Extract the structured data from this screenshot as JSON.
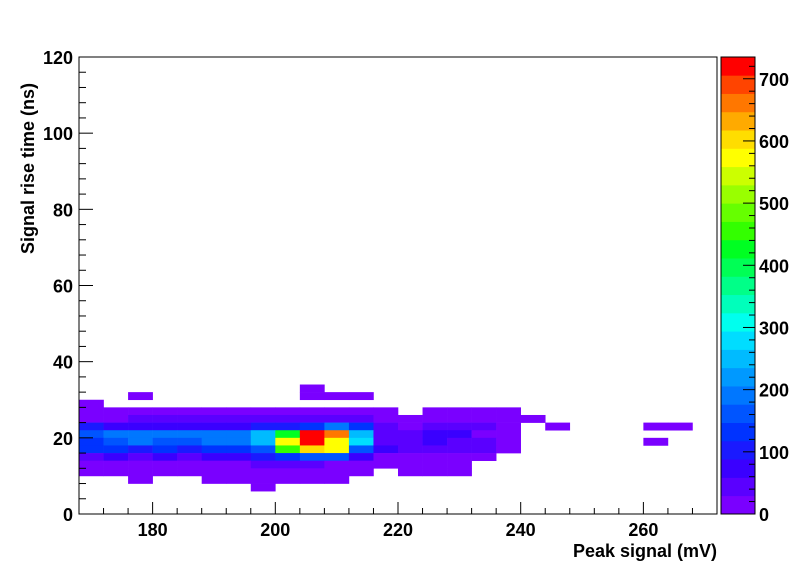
{
  "chart_data": {
    "type": "heatmap",
    "title": "",
    "xlabel": "Peak signal (mV)",
    "ylabel": "Signal rise time (ns)",
    "xlim": [
      168,
      272
    ],
    "ylim": [
      0,
      120
    ],
    "bin_width_x": 4,
    "bin_height_y": 2,
    "x_ticks": [
      180,
      200,
      220,
      240,
      260
    ],
    "y_ticks": [
      0,
      20,
      40,
      60,
      80,
      100,
      120
    ],
    "colorbar": {
      "range": [
        0,
        735
      ],
      "ticks": [
        0,
        100,
        200,
        300,
        400,
        500,
        600,
        700
      ],
      "palette": [
        "#7a00ff",
        "#5a00ff",
        "#3a00ff",
        "#1a1aff",
        "#0033ff",
        "#0055ff",
        "#0077ff",
        "#0099ff",
        "#00bbff",
        "#00ddff",
        "#00ffee",
        "#00ffbb",
        "#00ff88",
        "#00ff55",
        "#00ff22",
        "#33ff00",
        "#66ff00",
        "#99ff00",
        "#ccff00",
        "#ffff00",
        "#ffdd00",
        "#ffaa00",
        "#ff7700",
        "#ff4400",
        "#ff0000"
      ]
    },
    "cells": [
      {
        "x": 168,
        "y": 28,
        "v": 10
      },
      {
        "x": 176,
        "y": 30,
        "v": 10
      },
      {
        "x": 204,
        "y": 32,
        "v": 10
      },
      {
        "x": 204,
        "y": 30,
        "v": 10
      },
      {
        "x": 208,
        "y": 30,
        "v": 10
      },
      {
        "x": 212,
        "y": 30,
        "v": 10
      },
      {
        "x": 168,
        "y": 26,
        "v": 15
      },
      {
        "x": 172,
        "y": 26,
        "v": 15
      },
      {
        "x": 176,
        "y": 26,
        "v": 15
      },
      {
        "x": 180,
        "y": 26,
        "v": 15
      },
      {
        "x": 184,
        "y": 26,
        "v": 15
      },
      {
        "x": 188,
        "y": 26,
        "v": 15
      },
      {
        "x": 192,
        "y": 26,
        "v": 15
      },
      {
        "x": 196,
        "y": 26,
        "v": 15
      },
      {
        "x": 200,
        "y": 26,
        "v": 15
      },
      {
        "x": 204,
        "y": 26,
        "v": 15
      },
      {
        "x": 208,
        "y": 26,
        "v": 15
      },
      {
        "x": 212,
        "y": 26,
        "v": 15
      },
      {
        "x": 216,
        "y": 26,
        "v": 10
      },
      {
        "x": 224,
        "y": 26,
        "v": 10
      },
      {
        "x": 228,
        "y": 26,
        "v": 10
      },
      {
        "x": 232,
        "y": 26,
        "v": 10
      },
      {
        "x": 236,
        "y": 26,
        "v": 10
      },
      {
        "x": 168,
        "y": 24,
        "v": 20
      },
      {
        "x": 172,
        "y": 24,
        "v": 20
      },
      {
        "x": 176,
        "y": 24,
        "v": 30
      },
      {
        "x": 180,
        "y": 24,
        "v": 30
      },
      {
        "x": 184,
        "y": 24,
        "v": 30
      },
      {
        "x": 188,
        "y": 24,
        "v": 30
      },
      {
        "x": 192,
        "y": 24,
        "v": 30
      },
      {
        "x": 196,
        "y": 24,
        "v": 30
      },
      {
        "x": 200,
        "y": 24,
        "v": 30
      },
      {
        "x": 204,
        "y": 24,
        "v": 30
      },
      {
        "x": 208,
        "y": 24,
        "v": 50
      },
      {
        "x": 212,
        "y": 24,
        "v": 30
      },
      {
        "x": 216,
        "y": 24,
        "v": 20
      },
      {
        "x": 220,
        "y": 24,
        "v": 15
      },
      {
        "x": 224,
        "y": 24,
        "v": 15
      },
      {
        "x": 228,
        "y": 24,
        "v": 15
      },
      {
        "x": 232,
        "y": 24,
        "v": 15
      },
      {
        "x": 236,
        "y": 24,
        "v": 15
      },
      {
        "x": 240,
        "y": 24,
        "v": 10
      },
      {
        "x": 168,
        "y": 22,
        "v": 90
      },
      {
        "x": 172,
        "y": 22,
        "v": 60
      },
      {
        "x": 176,
        "y": 22,
        "v": 60
      },
      {
        "x": 180,
        "y": 22,
        "v": 60
      },
      {
        "x": 184,
        "y": 22,
        "v": 60
      },
      {
        "x": 188,
        "y": 22,
        "v": 60
      },
      {
        "x": 192,
        "y": 22,
        "v": 60
      },
      {
        "x": 196,
        "y": 22,
        "v": 100
      },
      {
        "x": 200,
        "y": 22,
        "v": 100
      },
      {
        "x": 204,
        "y": 22,
        "v": 140
      },
      {
        "x": 208,
        "y": 22,
        "v": 180
      },
      {
        "x": 212,
        "y": 22,
        "v": 120
      },
      {
        "x": 216,
        "y": 22,
        "v": 30
      },
      {
        "x": 220,
        "y": 22,
        "v": 20
      },
      {
        "x": 224,
        "y": 22,
        "v": 40
      },
      {
        "x": 228,
        "y": 22,
        "v": 40
      },
      {
        "x": 232,
        "y": 22,
        "v": 40
      },
      {
        "x": 236,
        "y": 22,
        "v": 15
      },
      {
        "x": 244,
        "y": 22,
        "v": 10
      },
      {
        "x": 260,
        "y": 22,
        "v": 10
      },
      {
        "x": 264,
        "y": 22,
        "v": 10
      },
      {
        "x": 168,
        "y": 20,
        "v": 150
      },
      {
        "x": 172,
        "y": 20,
        "v": 180
      },
      {
        "x": 176,
        "y": 20,
        "v": 180
      },
      {
        "x": 180,
        "y": 20,
        "v": 180
      },
      {
        "x": 184,
        "y": 20,
        "v": 180
      },
      {
        "x": 188,
        "y": 20,
        "v": 200
      },
      {
        "x": 192,
        "y": 20,
        "v": 200
      },
      {
        "x": 196,
        "y": 20,
        "v": 240
      },
      {
        "x": 200,
        "y": 20,
        "v": 420
      },
      {
        "x": 204,
        "y": 20,
        "v": 730
      },
      {
        "x": 208,
        "y": 20,
        "v": 670
      },
      {
        "x": 212,
        "y": 20,
        "v": 260
      },
      {
        "x": 216,
        "y": 20,
        "v": 40
      },
      {
        "x": 220,
        "y": 20,
        "v": 40
      },
      {
        "x": 224,
        "y": 20,
        "v": 60
      },
      {
        "x": 228,
        "y": 20,
        "v": 60
      },
      {
        "x": 232,
        "y": 20,
        "v": 20
      },
      {
        "x": 236,
        "y": 20,
        "v": 15
      },
      {
        "x": 168,
        "y": 18,
        "v": 130
      },
      {
        "x": 172,
        "y": 18,
        "v": 160
      },
      {
        "x": 176,
        "y": 18,
        "v": 180
      },
      {
        "x": 180,
        "y": 18,
        "v": 160
      },
      {
        "x": 184,
        "y": 18,
        "v": 160
      },
      {
        "x": 188,
        "y": 18,
        "v": 200
      },
      {
        "x": 192,
        "y": 18,
        "v": 200
      },
      {
        "x": 196,
        "y": 18,
        "v": 260
      },
      {
        "x": 200,
        "y": 18,
        "v": 580
      },
      {
        "x": 204,
        "y": 18,
        "v": 735
      },
      {
        "x": 208,
        "y": 18,
        "v": 570
      },
      {
        "x": 212,
        "y": 18,
        "v": 270
      },
      {
        "x": 216,
        "y": 18,
        "v": 30
      },
      {
        "x": 220,
        "y": 18,
        "v": 40
      },
      {
        "x": 224,
        "y": 18,
        "v": 60
      },
      {
        "x": 228,
        "y": 18,
        "v": 40
      },
      {
        "x": 232,
        "y": 18,
        "v": 30
      },
      {
        "x": 236,
        "y": 18,
        "v": 15
      },
      {
        "x": 260,
        "y": 18,
        "v": 10
      },
      {
        "x": 168,
        "y": 16,
        "v": 120
      },
      {
        "x": 172,
        "y": 16,
        "v": 130
      },
      {
        "x": 176,
        "y": 16,
        "v": 110
      },
      {
        "x": 180,
        "y": 16,
        "v": 130
      },
      {
        "x": 184,
        "y": 16,
        "v": 110
      },
      {
        "x": 188,
        "y": 16,
        "v": 120
      },
      {
        "x": 192,
        "y": 16,
        "v": 140
      },
      {
        "x": 196,
        "y": 16,
        "v": 160
      },
      {
        "x": 200,
        "y": 16,
        "v": 470
      },
      {
        "x": 204,
        "y": 16,
        "v": 600
      },
      {
        "x": 208,
        "y": 16,
        "v": 560
      },
      {
        "x": 212,
        "y": 16,
        "v": 150
      },
      {
        "x": 216,
        "y": 16,
        "v": 60
      },
      {
        "x": 220,
        "y": 16,
        "v": 40
      },
      {
        "x": 224,
        "y": 16,
        "v": 30
      },
      {
        "x": 228,
        "y": 16,
        "v": 30
      },
      {
        "x": 232,
        "y": 16,
        "v": 30
      },
      {
        "x": 236,
        "y": 16,
        "v": 15
      },
      {
        "x": 168,
        "y": 14,
        "v": 50
      },
      {
        "x": 172,
        "y": 14,
        "v": 60
      },
      {
        "x": 176,
        "y": 14,
        "v": 50
      },
      {
        "x": 180,
        "y": 14,
        "v": 60
      },
      {
        "x": 184,
        "y": 14,
        "v": 50
      },
      {
        "x": 188,
        "y": 14,
        "v": 60
      },
      {
        "x": 192,
        "y": 14,
        "v": 80
      },
      {
        "x": 196,
        "y": 14,
        "v": 90
      },
      {
        "x": 200,
        "y": 14,
        "v": 130
      },
      {
        "x": 204,
        "y": 14,
        "v": 160
      },
      {
        "x": 208,
        "y": 14,
        "v": 150
      },
      {
        "x": 212,
        "y": 14,
        "v": 80
      },
      {
        "x": 216,
        "y": 14,
        "v": 20
      },
      {
        "x": 220,
        "y": 14,
        "v": 20
      },
      {
        "x": 224,
        "y": 14,
        "v": 20
      },
      {
        "x": 228,
        "y": 14,
        "v": 20
      },
      {
        "x": 232,
        "y": 14,
        "v": 15
      },
      {
        "x": 168,
        "y": 12,
        "v": 20
      },
      {
        "x": 172,
        "y": 12,
        "v": 20
      },
      {
        "x": 176,
        "y": 12,
        "v": 20
      },
      {
        "x": 180,
        "y": 12,
        "v": 20
      },
      {
        "x": 184,
        "y": 12,
        "v": 20
      },
      {
        "x": 188,
        "y": 12,
        "v": 20
      },
      {
        "x": 192,
        "y": 12,
        "v": 20
      },
      {
        "x": 196,
        "y": 12,
        "v": 30
      },
      {
        "x": 200,
        "y": 12,
        "v": 30
      },
      {
        "x": 204,
        "y": 12,
        "v": 30
      },
      {
        "x": 208,
        "y": 12,
        "v": 20
      },
      {
        "x": 212,
        "y": 12,
        "v": 15
      },
      {
        "x": 216,
        "y": 12,
        "v": 15
      },
      {
        "x": 220,
        "y": 12,
        "v": 15
      },
      {
        "x": 224,
        "y": 12,
        "v": 15
      },
      {
        "x": 228,
        "y": 12,
        "v": 15
      },
      {
        "x": 168,
        "y": 10,
        "v": 10
      },
      {
        "x": 172,
        "y": 10,
        "v": 10
      },
      {
        "x": 176,
        "y": 10,
        "v": 10
      },
      {
        "x": 180,
        "y": 10,
        "v": 10
      },
      {
        "x": 184,
        "y": 10,
        "v": 10
      },
      {
        "x": 188,
        "y": 10,
        "v": 10
      },
      {
        "x": 192,
        "y": 10,
        "v": 10
      },
      {
        "x": 196,
        "y": 10,
        "v": 10
      },
      {
        "x": 200,
        "y": 10,
        "v": 10
      },
      {
        "x": 204,
        "y": 10,
        "v": 10
      },
      {
        "x": 208,
        "y": 10,
        "v": 10
      },
      {
        "x": 212,
        "y": 10,
        "v": 10
      },
      {
        "x": 220,
        "y": 10,
        "v": 10
      },
      {
        "x": 224,
        "y": 10,
        "v": 10
      },
      {
        "x": 228,
        "y": 10,
        "v": 10
      },
      {
        "x": 176,
        "y": 8,
        "v": 10
      },
      {
        "x": 188,
        "y": 8,
        "v": 10
      },
      {
        "x": 192,
        "y": 8,
        "v": 10
      },
      {
        "x": 196,
        "y": 8,
        "v": 10
      },
      {
        "x": 200,
        "y": 8,
        "v": 10
      },
      {
        "x": 204,
        "y": 8,
        "v": 10
      },
      {
        "x": 208,
        "y": 8,
        "v": 10
      },
      {
        "x": 196,
        "y": 6,
        "v": 10
      }
    ]
  }
}
